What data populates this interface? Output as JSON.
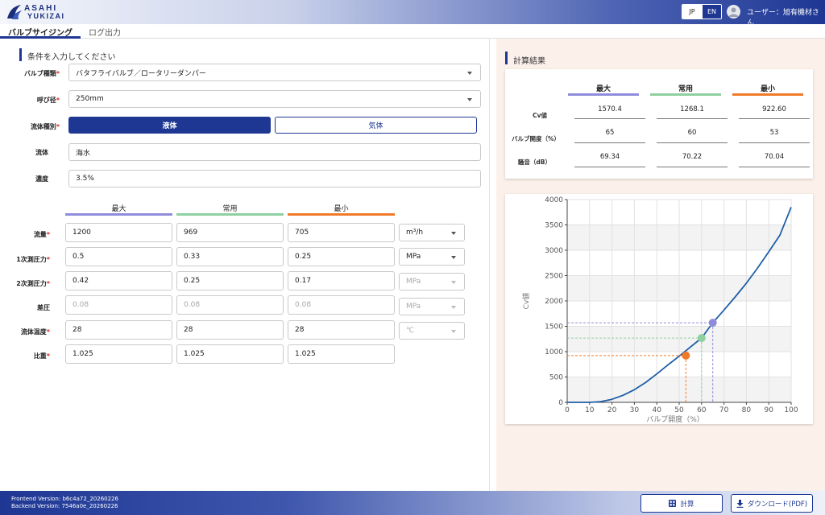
{
  "header": {
    "logo_line1": "ASAHI",
    "logo_line2": "YUKIZAI",
    "lang_jp": "JP",
    "lang_en": "EN",
    "user_label": "ユーザー：旭有機材さん"
  },
  "tabs": [
    {
      "label": "バルブサイジング"
    },
    {
      "label": "ログ出力"
    }
  ],
  "form": {
    "section_title": "条件を入力してください",
    "valve_type": {
      "label": "バルブ種類",
      "value": "バタフライバルブ／ロータリーダンパー"
    },
    "nominal_size": {
      "label": "呼び径",
      "value": "250mm"
    },
    "fluid_type": {
      "label": "流体種別",
      "option_liquid": "液体",
      "option_gas": "気体"
    },
    "fluid": {
      "label": "流体",
      "value": "海水"
    },
    "concentration": {
      "label": "濃度",
      "value": "3.5%"
    },
    "columns": [
      "最大",
      "常用",
      "最小"
    ],
    "rows": [
      {
        "label": "流量",
        "required": "*",
        "values": [
          "1200",
          "969",
          "705"
        ],
        "unit": "m³/h"
      },
      {
        "label": "1次測圧力",
        "required": "*",
        "values": [
          "0.5",
          "0.33",
          "0.25"
        ],
        "unit": "MPa"
      },
      {
        "label": "2次測圧力",
        "required": "*",
        "values": [
          "0.42",
          "0.25",
          "0.17"
        ],
        "unit": "MPa"
      },
      {
        "label": "差圧",
        "required": "",
        "values": [
          "0.08",
          "0.08",
          "0.08"
        ],
        "unit": "MPa"
      },
      {
        "label": "流体温度",
        "required": "*",
        "values": [
          "28",
          "28",
          "28"
        ],
        "unit": "℃"
      },
      {
        "label": "比重",
        "required": "*",
        "values": [
          "1.025",
          "1.025",
          "1.025"
        ],
        "unit": ""
      }
    ],
    "required_mark": "*"
  },
  "results": {
    "section_title": "計算結果",
    "columns": [
      "最大",
      "常用",
      "最小"
    ],
    "rows": [
      {
        "label": "Cv値",
        "values": [
          "1570.4",
          "1268.1",
          "922.60"
        ]
      },
      {
        "label": "バルブ開度（%）",
        "values": [
          "65",
          "60",
          "53"
        ]
      },
      {
        "label": "騒音（dB）",
        "values": [
          "69.34",
          "70.22",
          "70.04"
        ]
      }
    ]
  },
  "colors": {
    "max": "#8f8ddb",
    "normal": "#8ed0a0",
    "min": "#f07a28",
    "primary": "#1e3793",
    "curve": "#1f5fa8"
  },
  "chart_data": {
    "type": "line",
    "xlabel": "バルブ開度（%）",
    "ylabel": "Cv値",
    "xlim": [
      0,
      100
    ],
    "ylim": [
      0,
      4000
    ],
    "xticks": [
      0,
      10,
      20,
      30,
      40,
      50,
      60,
      70,
      80,
      90,
      100
    ],
    "yticks": [
      0,
      500,
      1000,
      1500,
      2000,
      2500,
      3000,
      3500,
      4000
    ],
    "grid": true,
    "series": [
      {
        "x": [
          0,
          10,
          15,
          20,
          25,
          30,
          35,
          40,
          45,
          50,
          55,
          60,
          65,
          70,
          75,
          80,
          85,
          90,
          95,
          100
        ],
        "values": [
          0,
          0,
          15,
          60,
          140,
          250,
          390,
          560,
          740,
          910,
          1090,
          1270,
          1570,
          1820,
          2080,
          2350,
          2650,
          2970,
          3300,
          3850
        ]
      }
    ],
    "points": [
      {
        "x": 65,
        "y": 1570.4,
        "color": "#8f8ddb"
      },
      {
        "x": 60,
        "y": 1268.1,
        "color": "#8ed0a0"
      },
      {
        "x": 53,
        "y": 922.6,
        "color": "#f07a28"
      }
    ]
  },
  "footer": {
    "frontend_version": "Frontend Version: b6c4a72_20260226",
    "backend_version": "Backend Version: 7546a0e_20260226",
    "calc_button": "計算",
    "download_button": "ダウンロード(PDF)"
  }
}
